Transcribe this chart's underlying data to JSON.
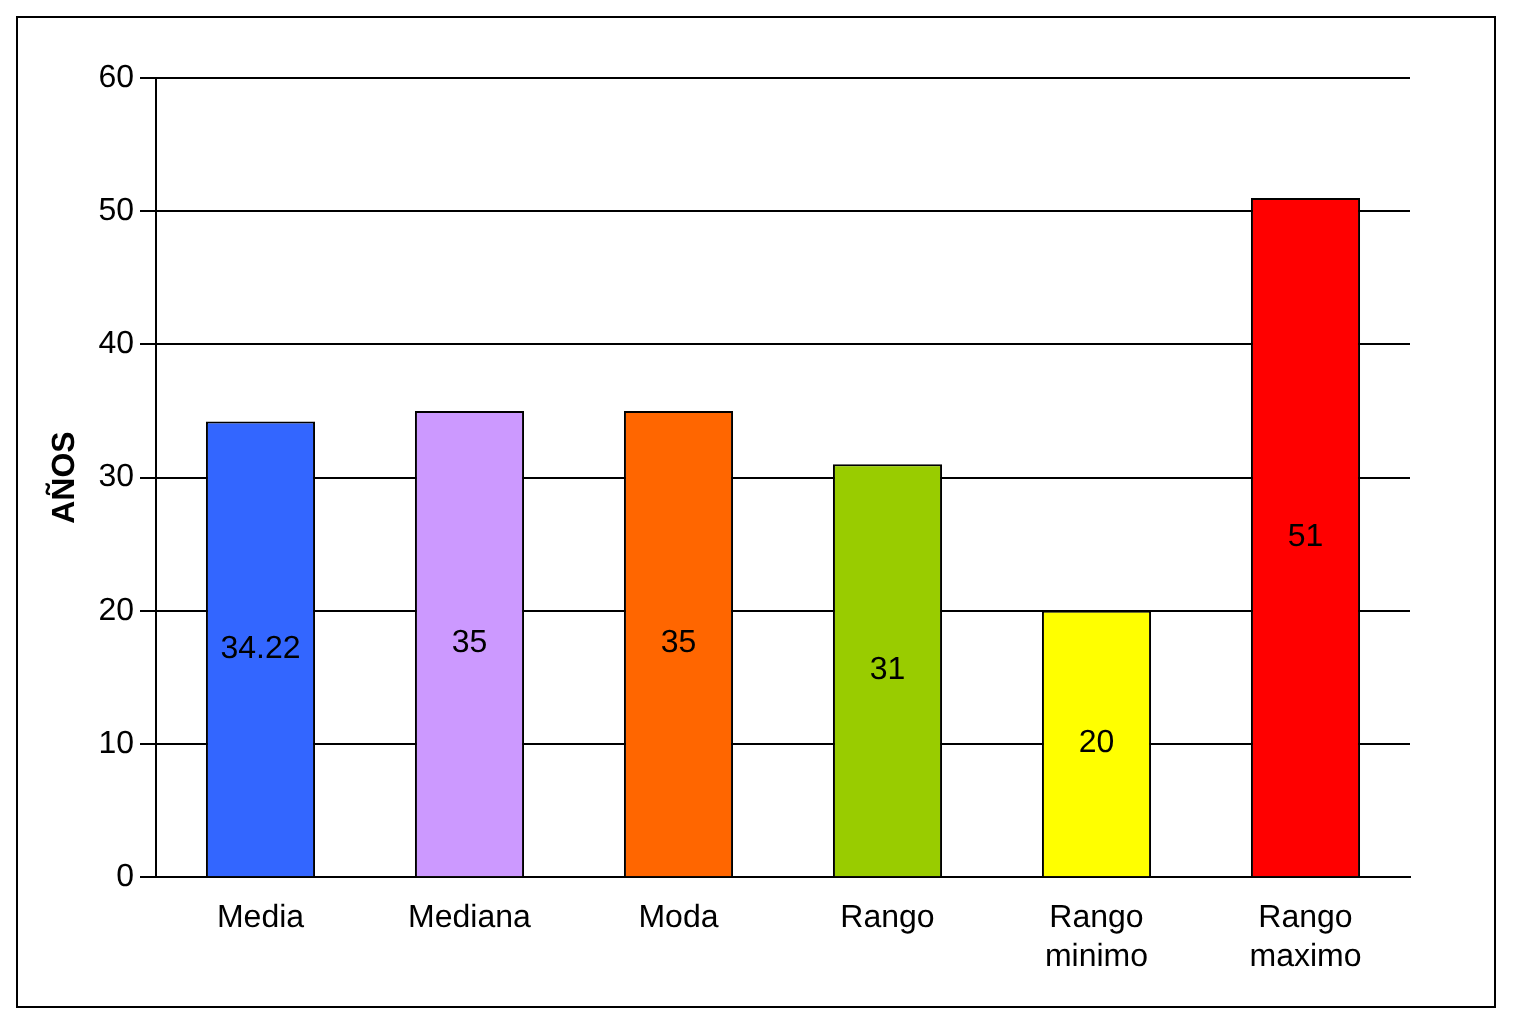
{
  "chart_data": {
    "type": "bar",
    "ylabel": "AÑOS",
    "categories": [
      "Media",
      "Mediana",
      "Moda",
      "Rango",
      "Rango minimo",
      "Rango maximo"
    ],
    "values": [
      34.22,
      35,
      35,
      31,
      20,
      51
    ],
    "colors": [
      "#3366ff",
      "#cc99ff",
      "#ff6600",
      "#99cc00",
      "#ffff00",
      "#ff0000"
    ],
    "ylim": [
      0,
      60
    ],
    "yticks": [
      0,
      10,
      20,
      30,
      40,
      50,
      60
    ],
    "grid": "y",
    "data_labels": true,
    "legend": false
  }
}
